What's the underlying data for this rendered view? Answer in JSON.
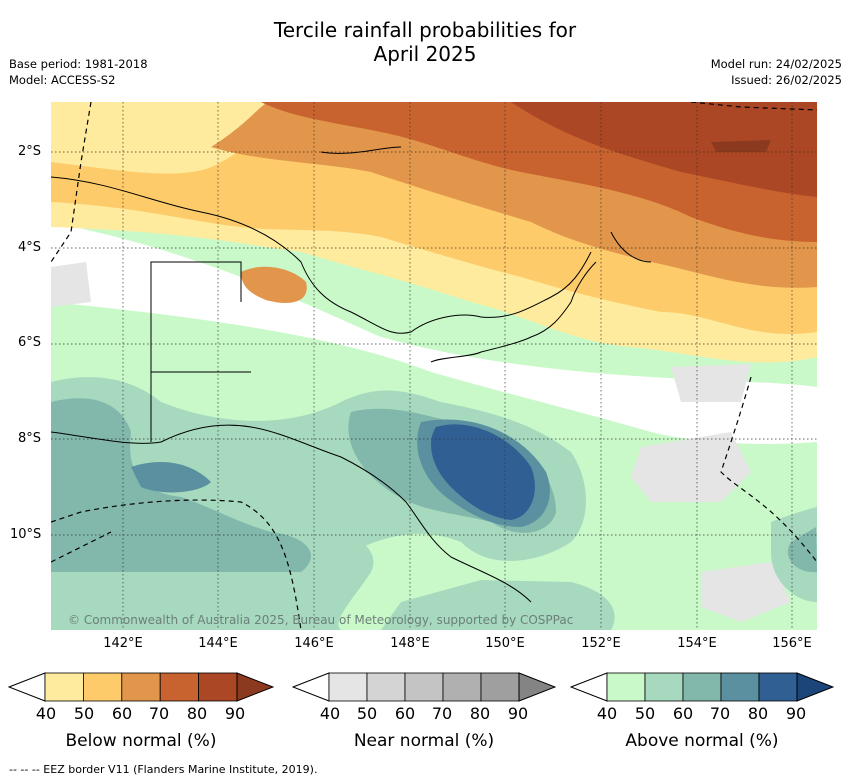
{
  "title_line1": "Tercile rainfall probabilities for",
  "title_line2": "April 2025",
  "base_period": "Base period: 1981-2018",
  "model": "Model: ACCESS-S2",
  "model_run": "Model run: 24/02/2025",
  "issued": "Issued: 26/02/2025",
  "lat_labels": [
    "2°S",
    "4°S",
    "6°S",
    "8°S",
    "10°S"
  ],
  "lon_labels": [
    "142°E",
    "144°E",
    "146°E",
    "148°E",
    "150°E",
    "152°E",
    "154°E",
    "156°E"
  ],
  "copyright": "© Commonwealth of Australia 2025, Bureau of Meteorology, supported by COSPPac",
  "colorbars": [
    {
      "title": "Below normal (%)",
      "ticks": [
        "40",
        "50",
        "60",
        "70",
        "80",
        "90"
      ],
      "colors": [
        "#ffffff",
        "#feeb9d",
        "#fdcb6a",
        "#e1964b",
        "#c8622e",
        "#ab4724",
        "#8c3a1f"
      ]
    },
    {
      "title": "Near normal (%)",
      "ticks": [
        "40",
        "50",
        "60",
        "70",
        "80",
        "90"
      ],
      "colors": [
        "#ffffff",
        "#e5e5e5",
        "#d4d4d4",
        "#c4c4c4",
        "#b0b0b0",
        "#9f9f9f",
        "#848484"
      ]
    },
    {
      "title": "Above normal (%)",
      "ticks": [
        "40",
        "50",
        "60",
        "70",
        "80",
        "90"
      ],
      "colors": [
        "#ffffff",
        "#c9f9c9",
        "#a6d9bd",
        "#82b7ab",
        "#5a90a0",
        "#305f94",
        "#1c4579"
      ]
    }
  ],
  "footer": "--  --  -- EEZ border V11 (Flanders Marine Institute, 2019)."
}
